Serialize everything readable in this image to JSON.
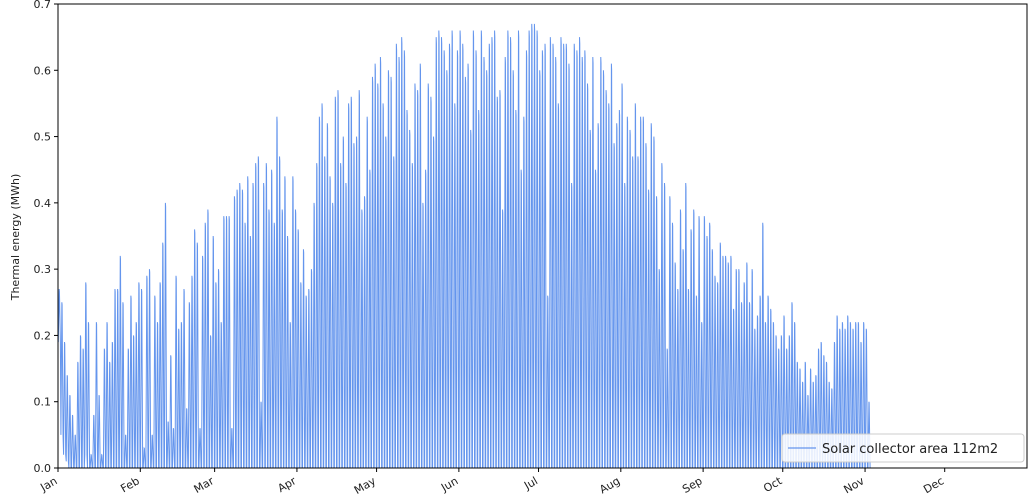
{
  "chart_data": {
    "type": "line",
    "title": "",
    "xlabel": "",
    "ylabel": "Thermal energy (MWh)",
    "ylim": [
      0,
      0.7
    ],
    "xlim": [
      0,
      365
    ],
    "grid": false,
    "legend_position": "bottom-right",
    "x_unit": "day of year",
    "x_tick_labels": [
      "Jan",
      "Feb",
      "Mar",
      "Apr",
      "May",
      "Jun",
      "Jul",
      "Aug",
      "Sep",
      "Oct",
      "Nov",
      "Dec"
    ],
    "x_tick_positions": [
      0,
      31,
      59,
      90,
      120,
      151,
      181,
      212,
      243,
      273,
      304,
      334
    ],
    "y_ticks": [
      0.0,
      0.1,
      0.2,
      0.3,
      0.4,
      0.5,
      0.6,
      0.7
    ],
    "y_tick_labels": [
      "0.0",
      "0.1",
      "0.2",
      "0.3",
      "0.4",
      "0.5",
      "0.6",
      "0.7"
    ],
    "series": [
      {
        "name": "Solar collector area 112m2",
        "color": "#6495ED",
        "daily_peak_values": [
          0.27,
          0.25,
          0.19,
          0.14,
          0.11,
          0.08,
          0.05,
          0.16,
          0.2,
          0.18,
          0.28,
          0.22,
          0.02,
          0.08,
          0.22,
          0.11,
          0.02,
          0.18,
          0.22,
          0.16,
          0.19,
          0.27,
          0.27,
          0.32,
          0.25,
          0.05,
          0.18,
          0.26,
          0.2,
          0.22,
          0.28,
          0.27,
          0.03,
          0.29,
          0.3,
          0.05,
          0.26,
          0.22,
          0.28,
          0.34,
          0.4,
          0.07,
          0.17,
          0.06,
          0.29,
          0.21,
          0.22,
          0.27,
          0.09,
          0.25,
          0.29,
          0.36,
          0.34,
          0.06,
          0.32,
          0.37,
          0.39,
          0.2,
          0.35,
          0.28,
          0.3,
          0.22,
          0.38,
          0.38,
          0.38,
          0.06,
          0.41,
          0.42,
          0.43,
          0.42,
          0.37,
          0.44,
          0.35,
          0.43,
          0.46,
          0.47,
          0.1,
          0.43,
          0.46,
          0.39,
          0.45,
          0.37,
          0.53,
          0.47,
          0.39,
          0.44,
          0.35,
          0.22,
          0.44,
          0.39,
          0.36,
          0.28,
          0.33,
          0.26,
          0.27,
          0.3,
          0.4,
          0.46,
          0.53,
          0.55,
          0.47,
          0.52,
          0.44,
          0.4,
          0.56,
          0.57,
          0.46,
          0.5,
          0.43,
          0.55,
          0.56,
          0.49,
          0.5,
          0.57,
          0.39,
          0.41,
          0.53,
          0.45,
          0.59,
          0.61,
          0.58,
          0.62,
          0.55,
          0.5,
          0.6,
          0.59,
          0.47,
          0.64,
          0.62,
          0.65,
          0.63,
          0.54,
          0.51,
          0.46,
          0.58,
          0.57,
          0.61,
          0.4,
          0.45,
          0.58,
          0.56,
          0.5,
          0.65,
          0.66,
          0.65,
          0.63,
          0.6,
          0.64,
          0.66,
          0.55,
          0.63,
          0.66,
          0.64,
          0.59,
          0.61,
          0.51,
          0.66,
          0.63,
          0.54,
          0.66,
          0.62,
          0.6,
          0.64,
          0.65,
          0.66,
          0.56,
          0.57,
          0.39,
          0.62,
          0.66,
          0.65,
          0.6,
          0.54,
          0.66,
          0.45,
          0.53,
          0.63,
          0.66,
          0.67,
          0.67,
          0.66,
          0.6,
          0.63,
          0.64,
          0.26,
          0.65,
          0.64,
          0.62,
          0.55,
          0.65,
          0.64,
          0.64,
          0.61,
          0.43,
          0.64,
          0.63,
          0.65,
          0.62,
          0.63,
          0.58,
          0.51,
          0.62,
          0.45,
          0.52,
          0.62,
          0.6,
          0.57,
          0.55,
          0.61,
          0.49,
          0.52,
          0.54,
          0.58,
          0.43,
          0.53,
          0.51,
          0.47,
          0.55,
          0.47,
          0.53,
          0.53,
          0.49,
          0.42,
          0.52,
          0.5,
          0.41,
          0.3,
          0.46,
          0.43,
          0.18,
          0.41,
          0.37,
          0.31,
          0.27,
          0.39,
          0.33,
          0.43,
          0.27,
          0.36,
          0.39,
          0.26,
          0.38,
          0.22,
          0.38,
          0.35,
          0.37,
          0.33,
          0.29,
          0.28,
          0.34,
          0.32,
          0.32,
          0.31,
          0.32,
          0.24,
          0.3,
          0.3,
          0.25,
          0.28,
          0.31,
          0.25,
          0.3,
          0.21,
          0.23,
          0.26,
          0.37,
          0.22,
          0.26,
          0.24,
          0.22,
          0.2,
          0.18,
          0.2,
          0.23,
          0.18,
          0.2,
          0.25,
          0.22,
          0.16,
          0.15,
          0.13,
          0.16,
          0.11,
          0.15,
          0.13,
          0.14,
          0.18,
          0.19,
          0.17,
          0.16,
          0.13,
          0.12,
          0.19,
          0.23,
          0.21,
          0.22,
          0.21,
          0.23,
          0.22,
          0.21,
          0.22,
          0.22,
          0.19,
          0.22,
          0.21,
          0.1
        ],
        "daily_trough_values": [
          0.19,
          0.05,
          0.02,
          0.01,
          0.0,
          0.0,
          0.0,
          0.0,
          0.0,
          0.0,
          0.02,
          0.0,
          0.0,
          0.0,
          0.0,
          0.0,
          0.0,
          0.0,
          0.0,
          0.0,
          0.0,
          0.0,
          0.0,
          0.0,
          0.0,
          0.0,
          0.0,
          0.0,
          0.0,
          0.0,
          0.0,
          0.0,
          0.0,
          0.0,
          0.0,
          0.0,
          0.0,
          0.0,
          0.0,
          0.0,
          0.0,
          0.0,
          0.0,
          0.0,
          0.0,
          0.0,
          0.0,
          0.0,
          0.0,
          0.0,
          0.0,
          0.0,
          0.0,
          0.0,
          0.0,
          0.0,
          0.0,
          0.0,
          0.0,
          0.0,
          0.0,
          0.0,
          0.0,
          0.0,
          0.0,
          0.0,
          0.0,
          0.0,
          0.0,
          0.0,
          0.0,
          0.0,
          0.0,
          0.0,
          0.0,
          0.0,
          0.0,
          0.0,
          0.0,
          0.0,
          0.0,
          0.0,
          0.0,
          0.0,
          0.0,
          0.0,
          0.0,
          0.0,
          0.0,
          0.0,
          0.0,
          0.0,
          0.0,
          0.0,
          0.0,
          0.0,
          0.0,
          0.0,
          0.0,
          0.0,
          0.0,
          0.0,
          0.0,
          0.0,
          0.0,
          0.0,
          0.0,
          0.0,
          0.0,
          0.0,
          0.0,
          0.0,
          0.0,
          0.0,
          0.0,
          0.0,
          0.0,
          0.0,
          0.0,
          0.0,
          0.0,
          0.0,
          0.0,
          0.0,
          0.0,
          0.0,
          0.0,
          0.0,
          0.0,
          0.0,
          0.0,
          0.0,
          0.0,
          0.0,
          0.0,
          0.0,
          0.0,
          0.0,
          0.0,
          0.0,
          0.0,
          0.0,
          0.0,
          0.0,
          0.0,
          0.0,
          0.0,
          0.0,
          0.0,
          0.0,
          0.0,
          0.0,
          0.0,
          0.0,
          0.0,
          0.0,
          0.0,
          0.0,
          0.0,
          0.0,
          0.0,
          0.0,
          0.0,
          0.0,
          0.0,
          0.0,
          0.0,
          0.0,
          0.0,
          0.0,
          0.0,
          0.0,
          0.0,
          0.0,
          0.0,
          0.0,
          0.0,
          0.0,
          0.0,
          0.0,
          0.0,
          0.0,
          0.0,
          0.0,
          0.0,
          0.0,
          0.0,
          0.0,
          0.0,
          0.0,
          0.0,
          0.0,
          0.0,
          0.0,
          0.0,
          0.0,
          0.0,
          0.0,
          0.0,
          0.0,
          0.0,
          0.0,
          0.0,
          0.0,
          0.0,
          0.0,
          0.0,
          0.0,
          0.0,
          0.0,
          0.0,
          0.0,
          0.0,
          0.0,
          0.0,
          0.0,
          0.0,
          0.0,
          0.0,
          0.0,
          0.0,
          0.0,
          0.0,
          0.0,
          0.0,
          0.0,
          0.0,
          0.0,
          0.0,
          0.0,
          0.0,
          0.0,
          0.0,
          0.0,
          0.0,
          0.0,
          0.0,
          0.0,
          0.0,
          0.0,
          0.0,
          0.0,
          0.0,
          0.0,
          0.0,
          0.0,
          0.0,
          0.0,
          0.0,
          0.0,
          0.0,
          0.0,
          0.0,
          0.0,
          0.0,
          0.0,
          0.0,
          0.0,
          0.0,
          0.0,
          0.0,
          0.0,
          0.0,
          0.0,
          0.0,
          0.0,
          0.0,
          0.0,
          0.0,
          0.0,
          0.0,
          0.0,
          0.0,
          0.0,
          0.0,
          0.0,
          0.0,
          0.0,
          0.0,
          0.0,
          0.0,
          0.0,
          0.0,
          0.0,
          0.0,
          0.0,
          0.0,
          0.0,
          0.0,
          0.0,
          0.0,
          0.0,
          0.0,
          0.0,
          0.0,
          0.0,
          0.0,
          0.0,
          0.0,
          0.0,
          0.0,
          0.0,
          0.0,
          0.0,
          0.0,
          0.0,
          0.0,
          0.0,
          0.0,
          0.0,
          0.0,
          0.0,
          0.0,
          0.0,
          0.0,
          0.0,
          0.0,
          0.0,
          0.0,
          0.0,
          0.0,
          0.0,
          0.0,
          0.0,
          0.0,
          0.0,
          0.0,
          0.0,
          0.0,
          0.0,
          0.0,
          0.0,
          0.0,
          0.0,
          0.0,
          0.0,
          0.0,
          0.0,
          0.0,
          0.0,
          0.0,
          0.0,
          0.0,
          0.0,
          0.0,
          0.0,
          0.0,
          0.0,
          0.0,
          0.0,
          0.0,
          0.0,
          0.0,
          0.0,
          0.0,
          0.0,
          0.0,
          0.0,
          0.0,
          0.0,
          0.0,
          0.0,
          0.0,
          0.0,
          0.0,
          0.0,
          0.0,
          0.0,
          0.0,
          0.0,
          0.0,
          0.0,
          0.0,
          0.05,
          0.1
        ]
      }
    ]
  }
}
